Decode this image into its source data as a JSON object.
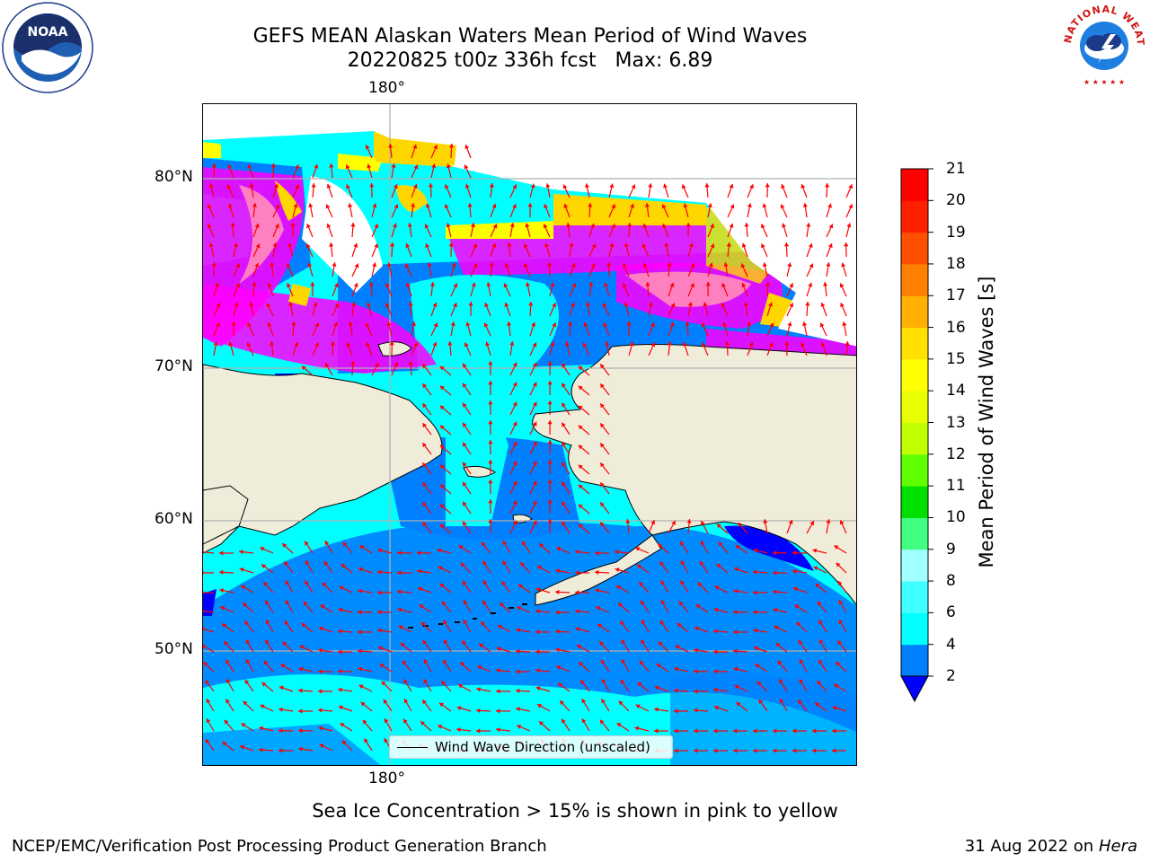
{
  "header": {
    "title_line1": "GEFS MEAN Alaskan Waters Mean Period of Wind Waves",
    "title_line2": "20220825 t00z 336h fcst   Max: 6.89"
  },
  "logos": {
    "left": "NOAA",
    "right": "NATIONAL WEATHER SERVICE"
  },
  "map": {
    "top_lon_label": "180°",
    "bottom_lon_label": "180°",
    "lat_labels": [
      "80°N",
      "70°N",
      "60°N",
      "50°N"
    ],
    "legend_label": "Wind Wave Direction (unscaled)",
    "arrow_color": "#ff0000",
    "land_color": "#efedda",
    "ice_colors": [
      "#ff00ff",
      "#ff80c0",
      "#ffd700",
      "#ffff00"
    ]
  },
  "colorbar": {
    "label": "Mean Period of Wind Waves [s]",
    "ticks": [
      "21",
      "20",
      "19",
      "18",
      "17",
      "16",
      "15",
      "14",
      "13",
      "12",
      "11",
      "10",
      "9",
      "8",
      "6",
      "4",
      "2"
    ],
    "colors": [
      "#0000ff",
      "#0080ff",
      "#00ffff",
      "#40ffff",
      "#a0ffff",
      "#40ff80",
      "#00e000",
      "#60ff00",
      "#c0ff00",
      "#e8ff00",
      "#ffff00",
      "#ffe000",
      "#ffb000",
      "#ff8000",
      "#ff5000",
      "#ff2000",
      "#ff0000"
    ]
  },
  "footer": {
    "caption": "Sea Ice Concentration > 15% is shown in pink to yellow",
    "left": "NCEP/EMC/Verification Post Processing Product Generation Branch",
    "right_date": "31 Aug 2022 on",
    "right_host": "Hera"
  }
}
